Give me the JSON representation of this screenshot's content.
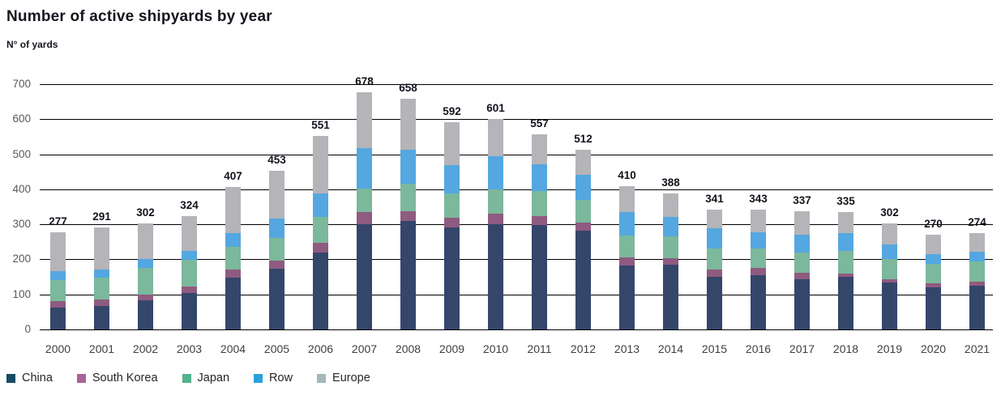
{
  "header": {
    "title": "Number of active shipyards by year",
    "ylabel": "N° of yards"
  },
  "chart_data": {
    "type": "bar",
    "stacked": true,
    "title": "Number of active shipyards by year",
    "ylabel": "N° of yards",
    "xlabel": "",
    "categories": [
      "2000",
      "2001",
      "2002",
      "2003",
      "2004",
      "2005",
      "2006",
      "2007",
      "2008",
      "2009",
      "2010",
      "2011",
      "2012",
      "2013",
      "2014",
      "2015",
      "2016",
      "2017",
      "2018",
      "2019",
      "2020",
      "2021"
    ],
    "series": [
      {
        "name": "China",
        "color": "#35466b",
        "legend_color": "#164a63",
        "values": [
          62,
          66,
          83,
          105,
          147,
          174,
          220,
          300,
          310,
          292,
          301,
          298,
          282,
          182,
          185,
          151,
          154,
          144,
          150,
          134,
          120,
          125
        ]
      },
      {
        "name": "South Korea",
        "color": "#8f5b80",
        "legend_color": "#aa6399",
        "values": [
          18,
          19,
          17,
          17,
          25,
          22,
          27,
          35,
          28,
          27,
          29,
          26,
          24,
          23,
          18,
          19,
          22,
          18,
          10,
          10,
          11,
          11
        ]
      },
      {
        "name": "Japan",
        "color": "#7cb89c",
        "legend_color": "#52b28e",
        "values": [
          62,
          63,
          76,
          77,
          64,
          65,
          74,
          68,
          77,
          69,
          70,
          72,
          64,
          62,
          63,
          61,
          56,
          57,
          64,
          57,
          56,
          57
        ]
      },
      {
        "name": "Row",
        "color": "#54a7e0",
        "legend_color": "#29a2e0",
        "values": [
          25,
          23,
          25,
          25,
          40,
          56,
          67,
          114,
          97,
          81,
          94,
          75,
          72,
          67,
          55,
          57,
          46,
          52,
          51,
          42,
          28,
          28
        ]
      },
      {
        "name": "Europe",
        "color": "#b5b4b8",
        "legend_color": "#a6b7bd",
        "values": [
          110,
          120,
          101,
          100,
          131,
          136,
          163,
          161,
          146,
          123,
          107,
          86,
          70,
          76,
          67,
          53,
          65,
          66,
          60,
          59,
          55,
          53
        ]
      }
    ],
    "totals": [
      277,
      291,
      302,
      324,
      407,
      453,
      551,
      678,
      658,
      592,
      601,
      557,
      512,
      410,
      388,
      341,
      343,
      337,
      335,
      302,
      270,
      274
    ],
    "yticks": [
      0,
      100,
      200,
      300,
      400,
      500,
      600,
      700
    ],
    "ylim": [
      0,
      700
    ],
    "grid": true,
    "gridline_color": "#000000",
    "legend_position": "bottom-left"
  },
  "style_colors": {
    "title_text": "#15151e",
    "axis_tick_text": "#595959",
    "year_tick_text": "#3f3f3f",
    "total_label_text": "#13131c",
    "background": "#ffffff"
  }
}
